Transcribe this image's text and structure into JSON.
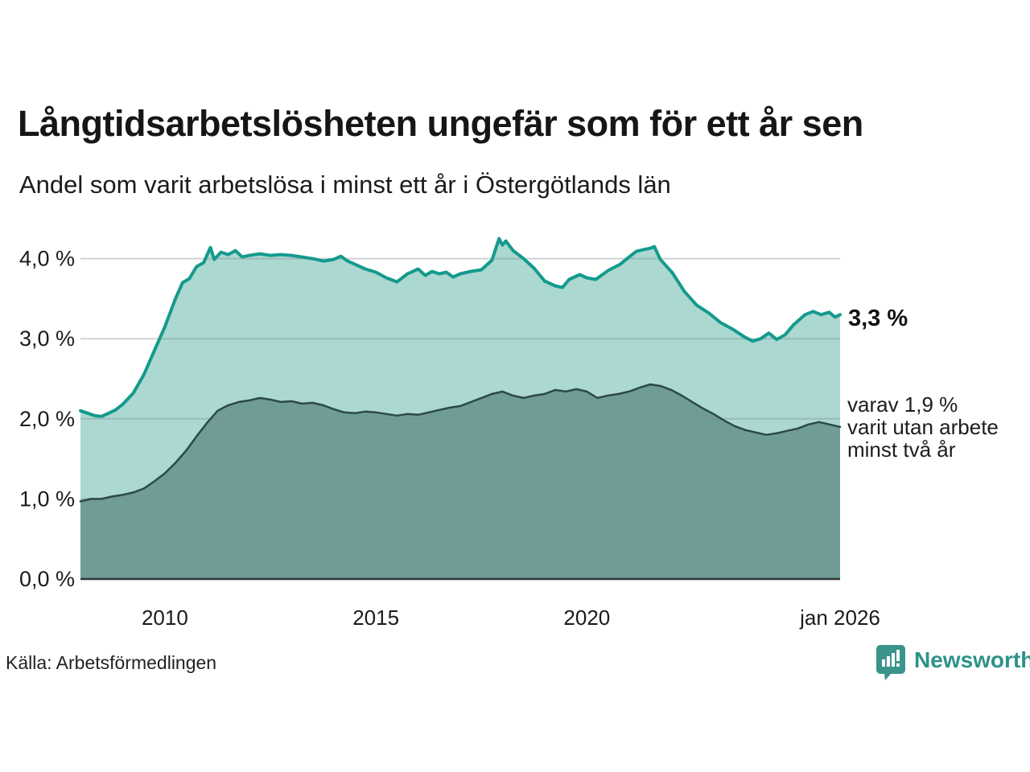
{
  "header": {
    "title": "Långtidsarbetslösheten ungefär som för ett år sen",
    "subtitle": "Andel som varit arbetslösa i minst ett år i Östergötlands län"
  },
  "chart_data": {
    "type": "area",
    "title": "Långtidsarbetslösheten ungefär som för ett år sen",
    "subtitle": "Andel som varit arbetslösa i minst ett år i Östergötlands län",
    "unit": "%",
    "grid": "horizontal-only",
    "x_axis": {
      "range": [
        2008,
        2026
      ],
      "ticks": [
        {
          "x": 2010,
          "label": "2010"
        },
        {
          "x": 2015,
          "label": "2015"
        },
        {
          "x": 2020,
          "label": "2020"
        },
        {
          "x": 2026,
          "label": "jan 2026"
        }
      ]
    },
    "y_axis": {
      "range": [
        0,
        4.4
      ],
      "ticks": [
        {
          "v": 0,
          "label": "0,0 %"
        },
        {
          "v": 1,
          "label": "1,0 %"
        },
        {
          "v": 2,
          "label": "2,0 %"
        },
        {
          "v": 3,
          "label": "3,0 %"
        },
        {
          "v": 4,
          "label": "4,0 %"
        }
      ]
    },
    "series": [
      {
        "name": "Andel som varit arbetslösa minst ett år",
        "line_color": "#149a8c",
        "fill_color": "#abd8d1",
        "line_width": 4,
        "final_value": 3.3,
        "points": [
          [
            2008.0,
            2.1
          ],
          [
            2008.17,
            2.07
          ],
          [
            2008.33,
            2.04
          ],
          [
            2008.5,
            2.03
          ],
          [
            2008.67,
            2.07
          ],
          [
            2008.83,
            2.11
          ],
          [
            2009.0,
            2.18
          ],
          [
            2009.25,
            2.32
          ],
          [
            2009.5,
            2.55
          ],
          [
            2009.75,
            2.85
          ],
          [
            2010.0,
            3.15
          ],
          [
            2010.25,
            3.5
          ],
          [
            2010.42,
            3.7
          ],
          [
            2010.58,
            3.75
          ],
          [
            2010.75,
            3.9
          ],
          [
            2010.92,
            3.95
          ],
          [
            2011.08,
            4.14
          ],
          [
            2011.17,
            3.99
          ],
          [
            2011.33,
            4.08
          ],
          [
            2011.5,
            4.05
          ],
          [
            2011.67,
            4.1
          ],
          [
            2011.83,
            4.02
          ],
          [
            2012.0,
            4.04
          ],
          [
            2012.25,
            4.06
          ],
          [
            2012.5,
            4.04
          ],
          [
            2012.75,
            4.05
          ],
          [
            2013.0,
            4.04
          ],
          [
            2013.25,
            4.02
          ],
          [
            2013.5,
            4.0
          ],
          [
            2013.75,
            3.97
          ],
          [
            2014.0,
            3.99
          ],
          [
            2014.17,
            4.03
          ],
          [
            2014.33,
            3.97
          ],
          [
            2014.5,
            3.93
          ],
          [
            2014.75,
            3.87
          ],
          [
            2015.0,
            3.83
          ],
          [
            2015.25,
            3.76
          ],
          [
            2015.5,
            3.71
          ],
          [
            2015.75,
            3.81
          ],
          [
            2016.0,
            3.87
          ],
          [
            2016.17,
            3.79
          ],
          [
            2016.33,
            3.84
          ],
          [
            2016.5,
            3.81
          ],
          [
            2016.67,
            3.83
          ],
          [
            2016.83,
            3.77
          ],
          [
            2017.0,
            3.81
          ],
          [
            2017.25,
            3.84
          ],
          [
            2017.5,
            3.86
          ],
          [
            2017.75,
            3.98
          ],
          [
            2017.92,
            4.25
          ],
          [
            2018.0,
            4.17
          ],
          [
            2018.08,
            4.22
          ],
          [
            2018.25,
            4.1
          ],
          [
            2018.5,
            4.0
          ],
          [
            2018.75,
            3.88
          ],
          [
            2019.0,
            3.72
          ],
          [
            2019.25,
            3.66
          ],
          [
            2019.42,
            3.64
          ],
          [
            2019.58,
            3.74
          ],
          [
            2019.83,
            3.8
          ],
          [
            2020.0,
            3.76
          ],
          [
            2020.21,
            3.74
          ],
          [
            2020.5,
            3.85
          ],
          [
            2020.79,
            3.93
          ],
          [
            2021.0,
            4.02
          ],
          [
            2021.17,
            4.09
          ],
          [
            2021.33,
            4.11
          ],
          [
            2021.5,
            4.13
          ],
          [
            2021.6,
            4.15
          ],
          [
            2021.74,
            3.99
          ],
          [
            2022.03,
            3.82
          ],
          [
            2022.31,
            3.59
          ],
          [
            2022.6,
            3.42
          ],
          [
            2022.89,
            3.32
          ],
          [
            2023.17,
            3.2
          ],
          [
            2023.45,
            3.12
          ],
          [
            2023.74,
            3.02
          ],
          [
            2023.93,
            2.97
          ],
          [
            2024.12,
            3.0
          ],
          [
            2024.31,
            3.07
          ],
          [
            2024.5,
            2.99
          ],
          [
            2024.7,
            3.05
          ],
          [
            2024.89,
            3.17
          ],
          [
            2025.17,
            3.3
          ],
          [
            2025.36,
            3.34
          ],
          [
            2025.55,
            3.3
          ],
          [
            2025.74,
            3.33
          ],
          [
            2025.88,
            3.27
          ],
          [
            2026.0,
            3.3
          ]
        ]
      },
      {
        "name": "varav utan arbete minst två år",
        "line_color": "#2c4a45",
        "fill_color": "#6f9c96",
        "line_width": 2.5,
        "final_value": 1.9,
        "points": [
          [
            2008.0,
            0.97
          ],
          [
            2008.25,
            1.0
          ],
          [
            2008.5,
            1.0
          ],
          [
            2008.75,
            1.03
          ],
          [
            2009.0,
            1.05
          ],
          [
            2009.25,
            1.08
          ],
          [
            2009.5,
            1.13
          ],
          [
            2009.75,
            1.22
          ],
          [
            2010.0,
            1.32
          ],
          [
            2010.25,
            1.45
          ],
          [
            2010.5,
            1.6
          ],
          [
            2010.75,
            1.78
          ],
          [
            2011.0,
            1.95
          ],
          [
            2011.25,
            2.1
          ],
          [
            2011.5,
            2.17
          ],
          [
            2011.75,
            2.21
          ],
          [
            2012.0,
            2.23
          ],
          [
            2012.25,
            2.26
          ],
          [
            2012.5,
            2.24
          ],
          [
            2012.75,
            2.21
          ],
          [
            2013.0,
            2.22
          ],
          [
            2013.25,
            2.19
          ],
          [
            2013.5,
            2.2
          ],
          [
            2013.75,
            2.17
          ],
          [
            2014.0,
            2.12
          ],
          [
            2014.25,
            2.08
          ],
          [
            2014.5,
            2.07
          ],
          [
            2014.75,
            2.09
          ],
          [
            2015.0,
            2.08
          ],
          [
            2015.25,
            2.06
          ],
          [
            2015.5,
            2.04
          ],
          [
            2015.75,
            2.06
          ],
          [
            2016.0,
            2.05
          ],
          [
            2016.25,
            2.08
          ],
          [
            2016.5,
            2.11
          ],
          [
            2016.75,
            2.14
          ],
          [
            2017.0,
            2.16
          ],
          [
            2017.25,
            2.21
          ],
          [
            2017.5,
            2.26
          ],
          [
            2017.75,
            2.31
          ],
          [
            2018.0,
            2.34
          ],
          [
            2018.25,
            2.29
          ],
          [
            2018.5,
            2.26
          ],
          [
            2018.75,
            2.29
          ],
          [
            2019.0,
            2.31
          ],
          [
            2019.25,
            2.36
          ],
          [
            2019.5,
            2.34
          ],
          [
            2019.75,
            2.37
          ],
          [
            2020.0,
            2.34
          ],
          [
            2020.25,
            2.26
          ],
          [
            2020.5,
            2.29
          ],
          [
            2020.75,
            2.31
          ],
          [
            2021.0,
            2.34
          ],
          [
            2021.25,
            2.39
          ],
          [
            2021.5,
            2.43
          ],
          [
            2021.75,
            2.41
          ],
          [
            2022.0,
            2.36
          ],
          [
            2022.25,
            2.29
          ],
          [
            2022.5,
            2.21
          ],
          [
            2022.75,
            2.13
          ],
          [
            2023.0,
            2.06
          ],
          [
            2023.25,
            1.98
          ],
          [
            2023.5,
            1.91
          ],
          [
            2023.75,
            1.86
          ],
          [
            2024.0,
            1.83
          ],
          [
            2024.25,
            1.8
          ],
          [
            2024.5,
            1.82
          ],
          [
            2024.75,
            1.85
          ],
          [
            2025.0,
            1.88
          ],
          [
            2025.25,
            1.93
          ],
          [
            2025.5,
            1.96
          ],
          [
            2025.75,
            1.93
          ],
          [
            2026.0,
            1.9
          ]
        ]
      }
    ],
    "annotations": {
      "total_label": "3,3 %",
      "two_year_label_lines": [
        "varav 1,9 %",
        "varit utan arbete",
        "minst två år"
      ]
    },
    "legend_position": "right-annotations"
  },
  "footer": {
    "source": "Källa: Arbetsförmedlingen",
    "brand_name": "Newsworthy"
  },
  "colors": {
    "accent_teal": "#149a8c",
    "fill_light": "#abd8d1",
    "line_dark": "#2c4a45",
    "fill_dark": "#6f9c96",
    "gridline": "#d8dade",
    "axis": "#2f3437",
    "text": "#161616",
    "brand_teal": "#2c9289",
    "logo_bg": "#3a948b"
  }
}
